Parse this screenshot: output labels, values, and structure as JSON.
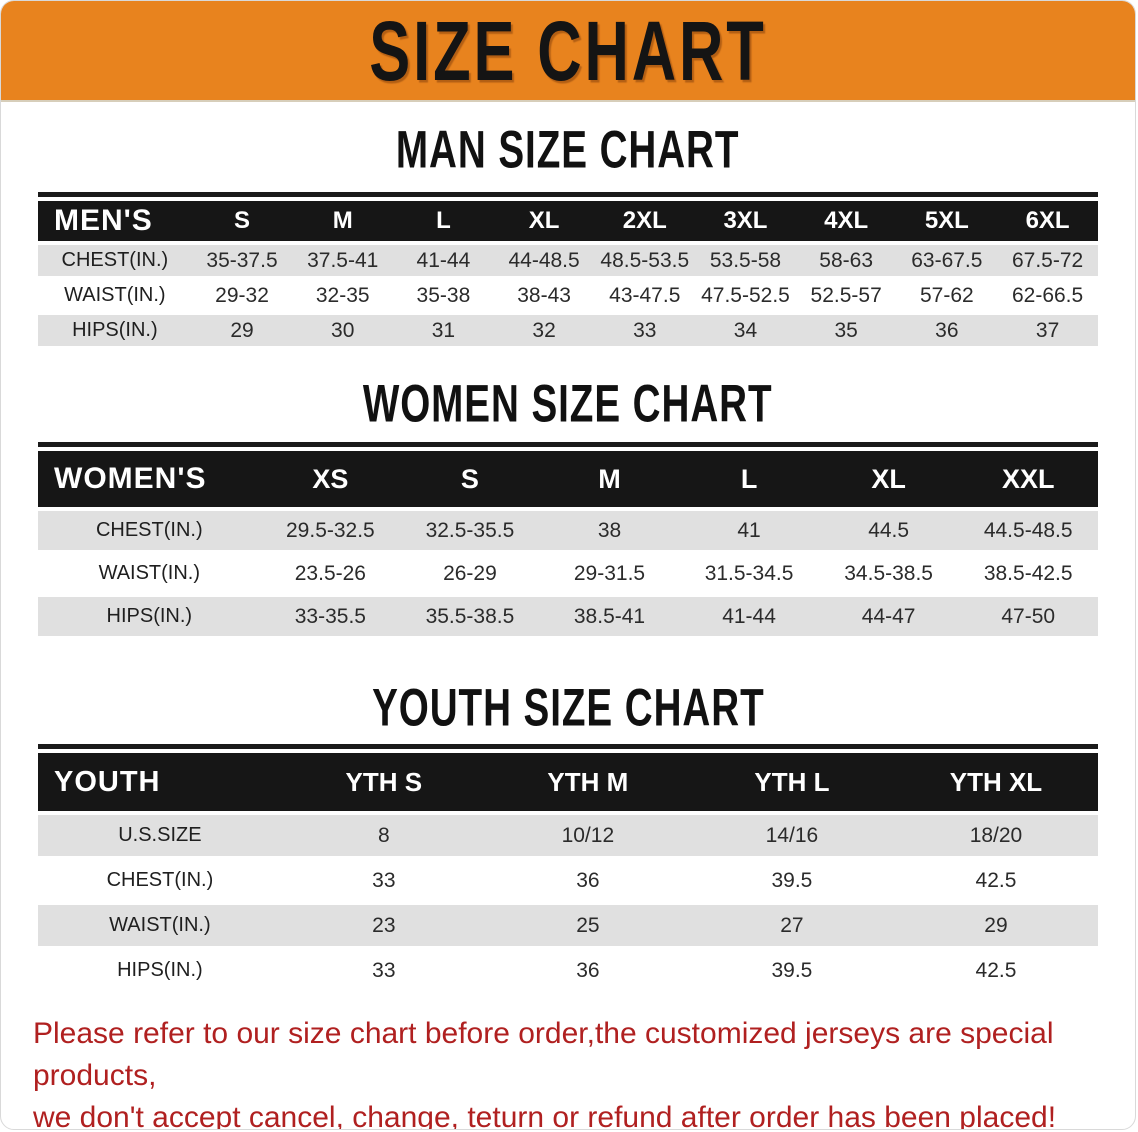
{
  "banner": {
    "title": "SIZE CHART"
  },
  "colors": {
    "banner_orange": "#e8831e",
    "header_black": "#161616",
    "row_gray": "#e0e0e0",
    "footer_red": "#b02020"
  },
  "sections": [
    {
      "heading": "MAN SIZE CHART",
      "table": {
        "corner": "MEN'S",
        "columns": [
          "S",
          "M",
          "L",
          "XL",
          "2XL",
          "3XL",
          "4XL",
          "5XL",
          "6XL"
        ],
        "rows": [
          {
            "label": "CHEST(IN.)",
            "values": [
              "35-37.5",
              "37.5-41",
              "41-44",
              "44-48.5",
              "48.5-53.5",
              "53.5-58",
              "58-63",
              "63-67.5",
              "67.5-72"
            ]
          },
          {
            "label": "WAIST(IN.)",
            "values": [
              "29-32",
              "32-35",
              "35-38",
              "38-43",
              "43-47.5",
              "47.5-52.5",
              "52.5-57",
              "57-62",
              "62-66.5"
            ]
          },
          {
            "label": "HIPS(IN.)",
            "values": [
              "29",
              "30",
              "31",
              "32",
              "33",
              "34",
              "35",
              "36",
              "37"
            ]
          }
        ]
      }
    },
    {
      "heading": "WOMEN SIZE CHART",
      "table": {
        "corner": "WOMEN'S",
        "columns": [
          "XS",
          "S",
          "M",
          "L",
          "XL",
          "XXL"
        ],
        "rows": [
          {
            "label": "CHEST(IN.)",
            "values": [
              "29.5-32.5",
              "32.5-35.5",
              "38",
              "41",
              "44.5",
              "44.5-48.5"
            ]
          },
          {
            "label": "WAIST(IN.)",
            "values": [
              "23.5-26",
              "26-29",
              "29-31.5",
              "31.5-34.5",
              "34.5-38.5",
              "38.5-42.5"
            ]
          },
          {
            "label": "HIPS(IN.)",
            "values": [
              "33-35.5",
              "35.5-38.5",
              "38.5-41",
              "41-44",
              "44-47",
              "47-50"
            ]
          }
        ]
      }
    },
    {
      "heading": "YOUTH SIZE CHART",
      "table": {
        "corner": "YOUTH",
        "columns": [
          "YTH S",
          "YTH M",
          "YTH L",
          "YTH XL"
        ],
        "rows": [
          {
            "label": "U.S.SIZE",
            "values": [
              "8",
              "10/12",
              "14/16",
              "18/20"
            ]
          },
          {
            "label": "CHEST(IN.)",
            "values": [
              "33",
              "36",
              "39.5",
              "42.5"
            ]
          },
          {
            "label": "WAIST(IN.)",
            "values": [
              "23",
              "25",
              "27",
              "29"
            ]
          },
          {
            "label": "HIPS(IN.)",
            "values": [
              "33",
              "36",
              "39.5",
              "42.5"
            ]
          }
        ]
      }
    }
  ],
  "footer": {
    "line1": "Please refer to our size chart before order,the customized jerseys are special products,",
    "line2": "we don't accept cancel, change, teturn or refund after order has been placed!"
  }
}
